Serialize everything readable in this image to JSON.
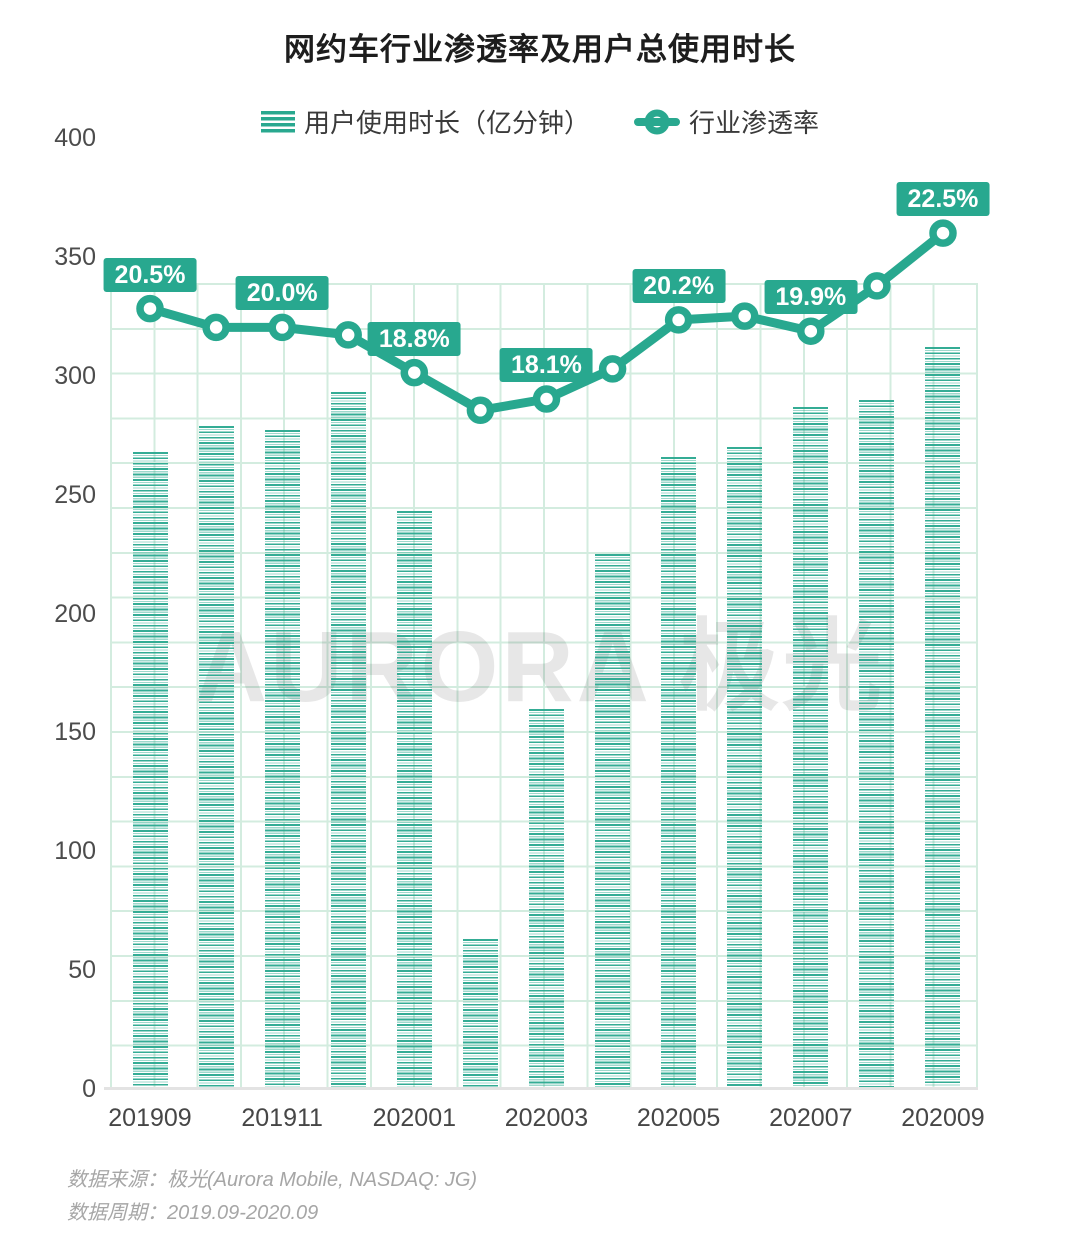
{
  "title": "网约车行业渗透率及用户总使用时长",
  "legend": [
    {
      "label": "用户使用时长（亿分钟）"
    },
    {
      "label": "行业渗透率"
    }
  ],
  "watermark": "AURORA 极光",
  "footer": {
    "source": "数据来源：极光(Aurora Mobile, NASDAQ: JG)",
    "period": "数据周期：2019.09-2020.09"
  },
  "colors": {
    "accent": "#28a88f",
    "bar_stripe": "#29a88f",
    "grid": "#d3ecdf",
    "badge_text": "#ffffff",
    "axis_text": "#4c4c4c",
    "baseline": "#e3e3e3"
  },
  "chart_data": {
    "type": "bar",
    "subtype": "bar+line-combo",
    "categories": [
      "201909",
      "201910",
      "201911",
      "201912",
      "202001",
      "202002",
      "202003",
      "202004",
      "202005",
      "202006",
      "202007",
      "202008",
      "202009"
    ],
    "x_tick_labels": [
      "201909",
      "201911",
      "202001",
      "202003",
      "202005",
      "202007",
      "202009"
    ],
    "y_ticks": [
      0,
      50,
      100,
      150,
      200,
      250,
      300,
      350,
      400
    ],
    "ylim": [
      0,
      400
    ],
    "grid": true,
    "legend_position": "top",
    "series": [
      {
        "name": "用户使用时长（亿分钟）",
        "type": "bar",
        "values": [
          268,
          279,
          277,
          293,
          243,
          63,
          160,
          225,
          266,
          270,
          287,
          290,
          312
        ]
      },
      {
        "name": "行业渗透率",
        "type": "line",
        "unit": "%",
        "values": [
          20.5,
          20.0,
          20.0,
          19.8,
          18.8,
          17.8,
          18.1,
          18.9,
          20.2,
          20.3,
          19.9,
          21.1,
          22.5
        ],
        "point_labels": [
          "20.5%",
          "",
          "20.0%",
          "",
          "18.8%",
          "",
          "18.1%",
          "",
          "20.2%",
          "",
          "19.9%",
          "",
          "22.5%"
        ]
      }
    ]
  }
}
